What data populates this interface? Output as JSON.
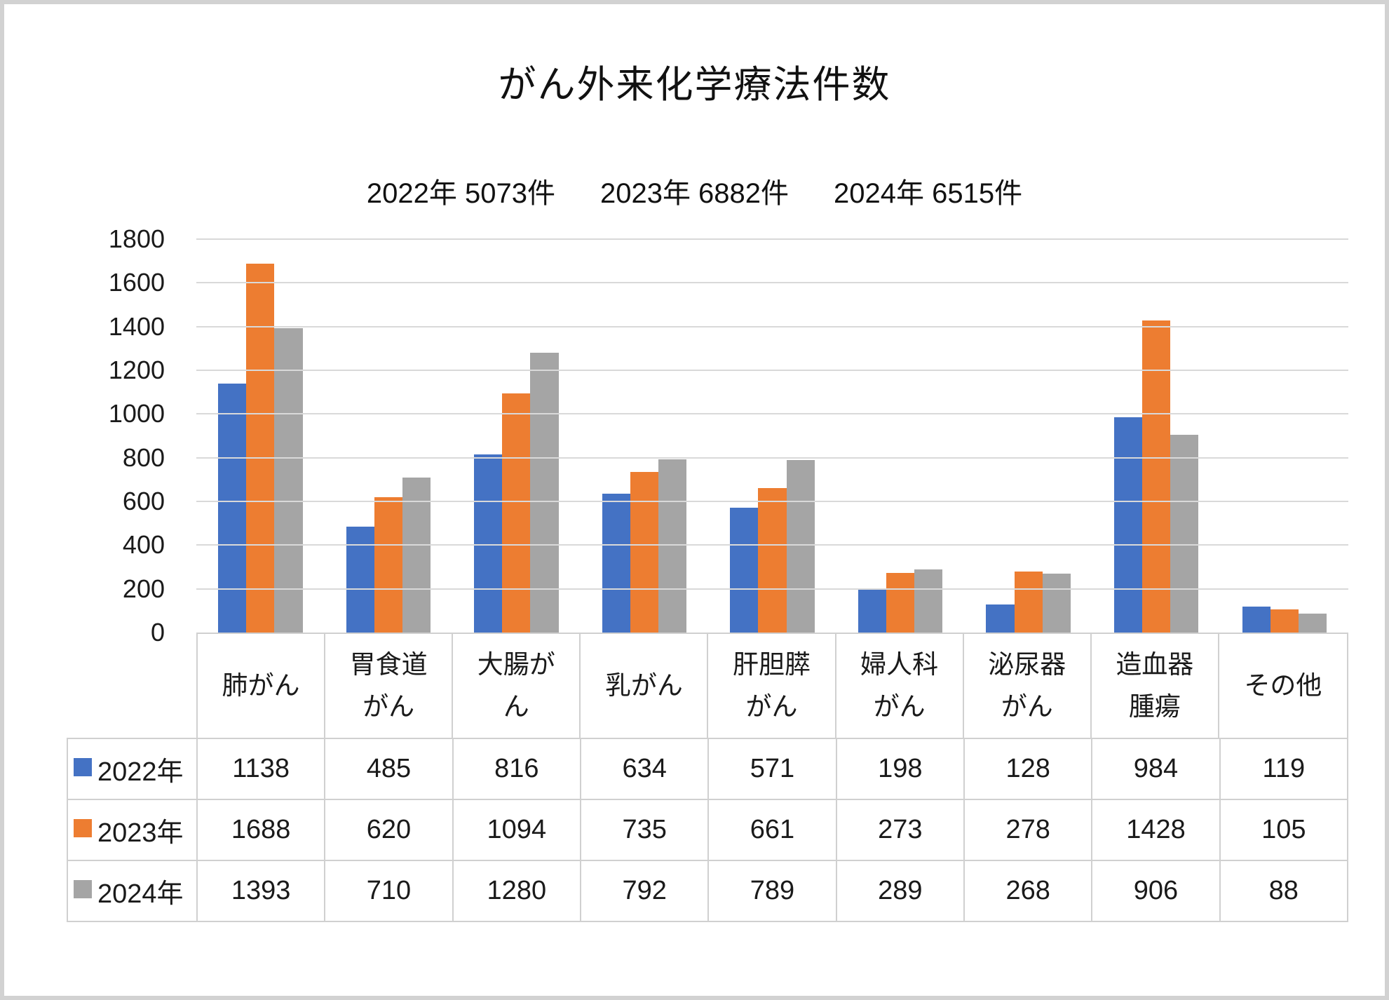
{
  "chart_data": {
    "type": "bar",
    "title": "がん外来化学療法件数",
    "subtitle": "2022年 5073件　2023年 6882件　2024年 6515件",
    "subtitle_parts": [
      "2022年 5073件",
      "2023年 6882件",
      "2024年 6515件"
    ],
    "categories": [
      "肺がん",
      "胃食道がん",
      "大腸がん",
      "乳がん",
      "肝胆膵がん",
      "婦人科がん",
      "泌尿器がん",
      "造血器腫瘍",
      "その他"
    ],
    "category_labels": [
      "肺がん",
      "胃食道\nがん",
      "大腸が\nん",
      "乳がん",
      "肝胆膵\nがん",
      "婦人科\nがん",
      "泌尿器\nがん",
      "造血器\n腫瘍",
      "その他"
    ],
    "series": [
      {
        "name": "2022年",
        "color": "#4472C4",
        "values": [
          1138,
          485,
          816,
          634,
          571,
          198,
          128,
          984,
          119
        ]
      },
      {
        "name": "2023年",
        "color": "#ED7D31",
        "values": [
          1688,
          620,
          1094,
          735,
          661,
          273,
          278,
          1428,
          105
        ]
      },
      {
        "name": "2024年",
        "color": "#A5A5A5",
        "values": [
          1393,
          710,
          1280,
          792,
          789,
          289,
          268,
          906,
          88
        ]
      }
    ],
    "xlabel": "",
    "ylabel": "",
    "ylim": [
      0,
      1800
    ],
    "ytick_step": 200,
    "grid": "horizontal-only",
    "legend_position": "data-table-left-column",
    "colors": {
      "gridline": "#D9D9D9",
      "table_border": "#D0D0D0",
      "text": "#1A1A1A",
      "background": "#FFFFFF",
      "page_frame": "#D2D2D2"
    }
  }
}
